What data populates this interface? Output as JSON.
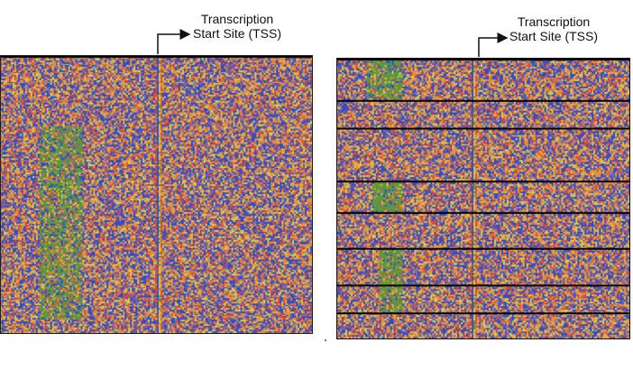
{
  "annotations": {
    "left": {
      "line1": "Transcription",
      "line2": "Start Site (TSS)"
    },
    "right": {
      "line1": "Transcription",
      "line2": "Start Site (TSS)"
    }
  },
  "colors": {
    "base_a": "#2f4fc8",
    "base_c": "#e09040",
    "base_g": "#5a9a3a",
    "base_t": "#d84a3a",
    "base_y": "#d8c850",
    "base_n": "#7a6aa8",
    "divider": "#000000"
  },
  "panels": {
    "left": {
      "rows": 170,
      "cols": 175,
      "tss_fraction": 0.5,
      "dividers": []
    },
    "right": {
      "rows": 160,
      "cols": 165,
      "tss_fraction": 0.46,
      "dividers": [
        0.15,
        0.25,
        0.44,
        0.55,
        0.68,
        0.81,
        0.91
      ]
    }
  }
}
